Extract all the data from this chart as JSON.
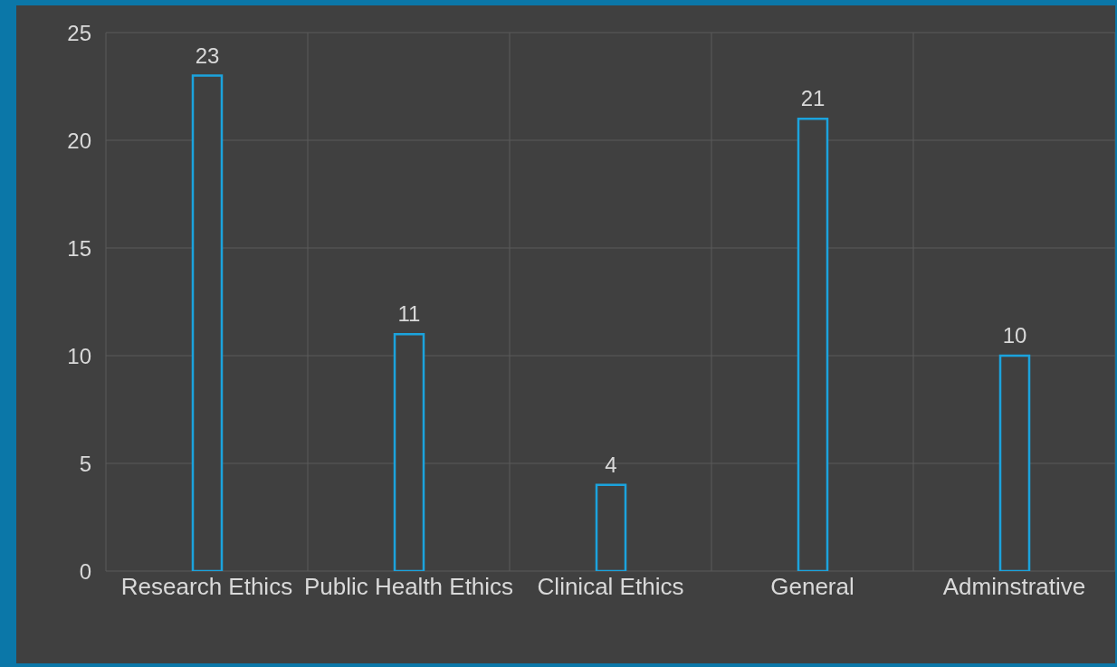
{
  "chart_data": {
    "type": "bar",
    "categories": [
      "Research Ethics",
      "Public Health Ethics",
      "Clinical Ethics",
      "General",
      "Adminstrative"
    ],
    "values": [
      23,
      11,
      4,
      21,
      10
    ],
    "color": "#1ba3dd",
    "ylim": [
      0,
      25
    ],
    "yticks": [
      0,
      5,
      10,
      15,
      20,
      25
    ],
    "grid": true,
    "data_labels": true
  }
}
